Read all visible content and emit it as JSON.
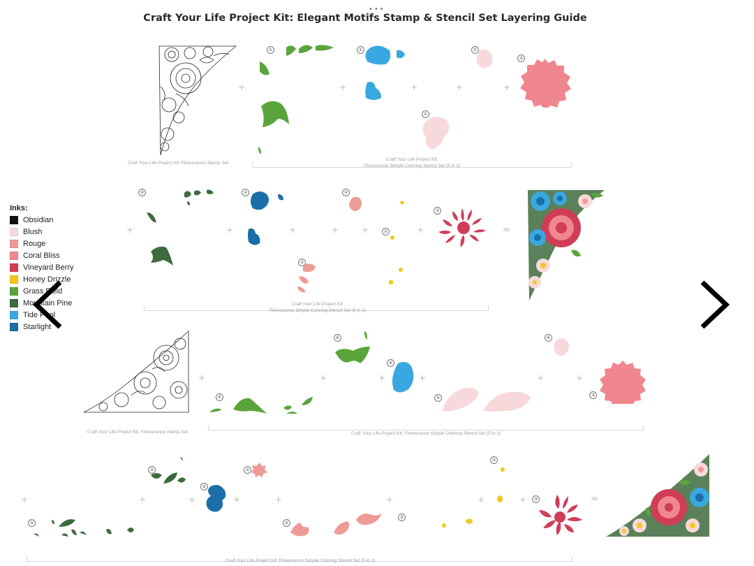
{
  "window": {
    "dots": "•••"
  },
  "title": "Craft Your Life Project Kit: Elegant Motifs Stamp & Stencil Set Layering Guide",
  "inks": {
    "heading": "Inks:",
    "items": [
      {
        "name": "Obsidian",
        "color": "#111111"
      },
      {
        "name": "Blush",
        "color": "#f7d9dc"
      },
      {
        "name": "Rouge",
        "color": "#ee9a96"
      },
      {
        "name": "Coral Bliss",
        "color": "#f0868e"
      },
      {
        "name": "Vineyard Berry",
        "color": "#cf3d57"
      },
      {
        "name": "Honey Drizzle",
        "color": "#f3c81a"
      },
      {
        "name": "Grass Field",
        "color": "#5aa53b"
      },
      {
        "name": "Mountain Pine",
        "color": "#3d6b3c"
      },
      {
        "name": "Tide Pool",
        "color": "#3aa8e0"
      },
      {
        "name": "Starlight",
        "color": "#1a6fa8"
      }
    ]
  },
  "steps": {
    "n1": "①",
    "n2": "②",
    "n3": "③",
    "n4": "④",
    "n5": "⑤"
  },
  "operators": {
    "plus": "+",
    "equals": "="
  },
  "captions": {
    "stamp_set": "Craft Your Life Project Kit: Florescence Stamp Set",
    "stencil_set_line1": "Craft Your Life Project Kit:",
    "stencil_set_line2": "Florescence Simple Coloring Stencil Set (5 in 1)",
    "stencil_set_full": "Craft Your Life Project Kit: Florescence Simple Coloring Stencil Set (5 in 1)"
  },
  "nav": {
    "prev": "previous-arrow",
    "next": "next-arrow"
  }
}
